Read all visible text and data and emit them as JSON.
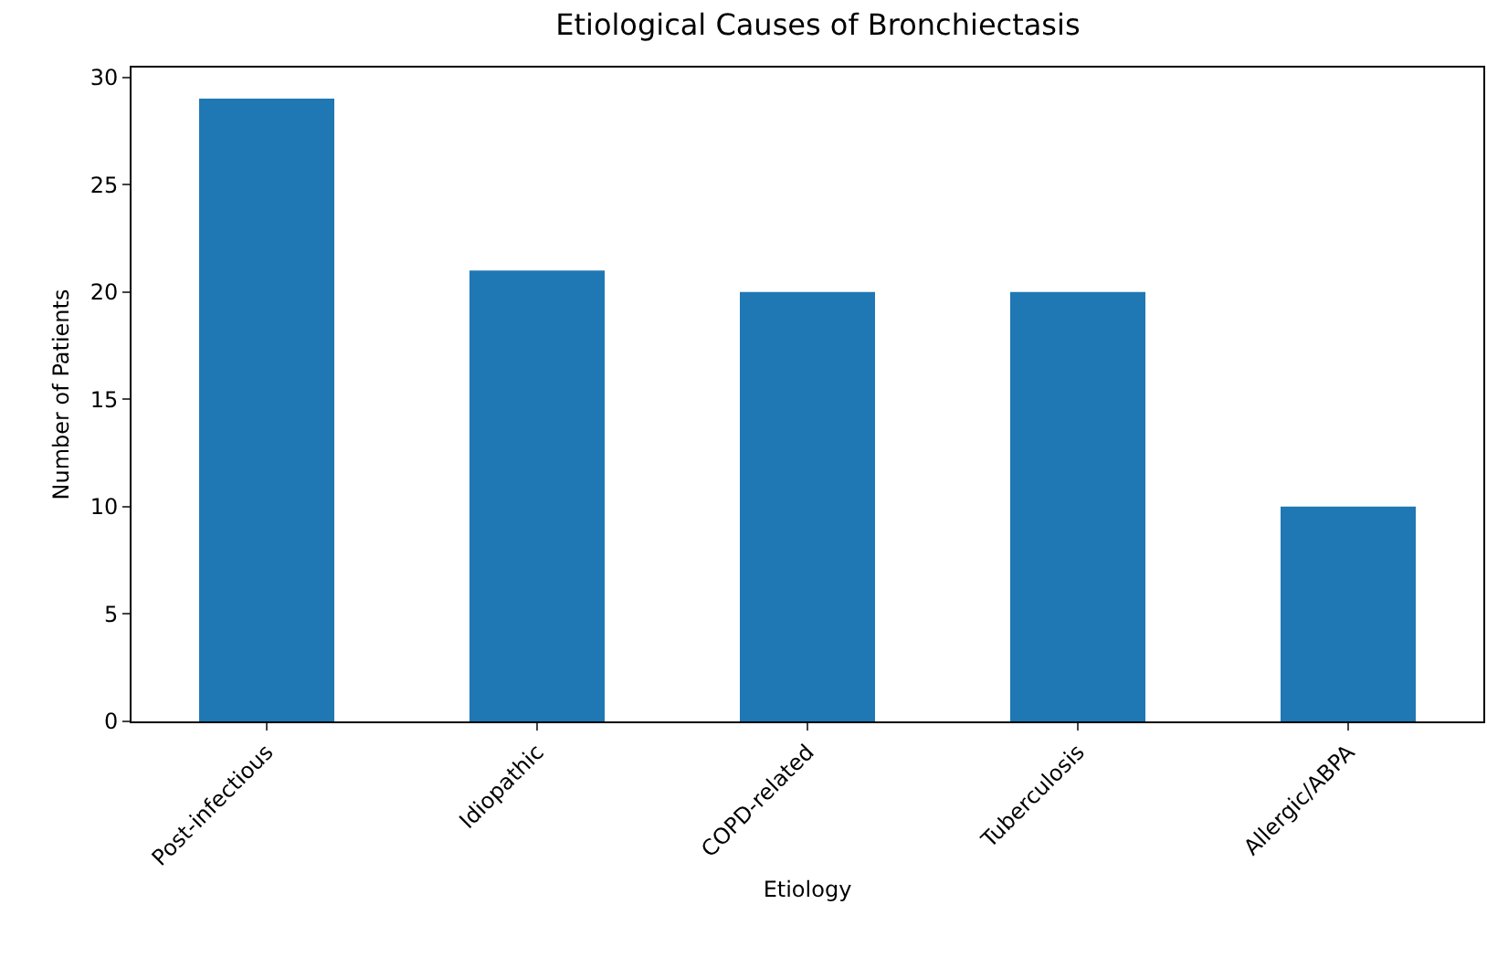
{
  "chart_data": {
    "type": "bar",
    "title": "Etiological Causes of Bronchiectasis",
    "xlabel": "Etiology",
    "ylabel": "Number of Patients",
    "categories": [
      "Post-infectious",
      "Idiopathic",
      "COPD-related",
      "Tuberculosis",
      "Allergic/ABPA"
    ],
    "values": [
      29,
      21,
      20,
      20,
      10
    ],
    "color": "#1f77b4",
    "ylim": [
      0,
      30.45
    ],
    "yticks": [
      0,
      5,
      10,
      15,
      20,
      25,
      30
    ],
    "grid": false
  }
}
